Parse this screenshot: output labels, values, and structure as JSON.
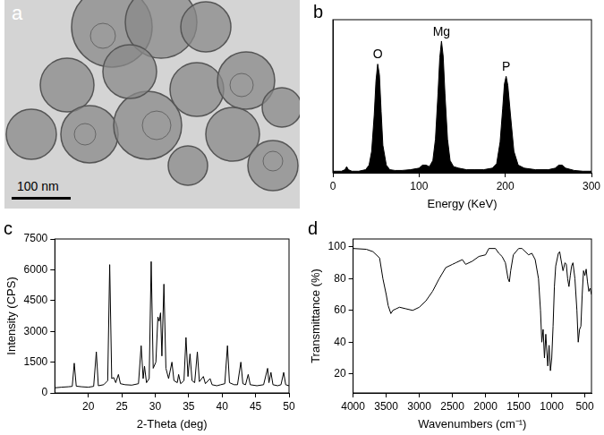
{
  "image_panel": {
    "panel_label": "a",
    "scale_bar": "100 nm"
  },
  "chart_data": [
    {
      "panel_label": "b",
      "type": "area",
      "x_label": "Energy (KeV)",
      "x": [
        0,
        5,
        10,
        14,
        16,
        18,
        22,
        30,
        38,
        42,
        45,
        48,
        50,
        52,
        54,
        56,
        58,
        62,
        66,
        72,
        80,
        90,
        100,
        104,
        108,
        112,
        116,
        119,
        122,
        124,
        126,
        128,
        130,
        133,
        136,
        140,
        146,
        155,
        165,
        175,
        185,
        190,
        194,
        197,
        199,
        201,
        203,
        206,
        210,
        215,
        222,
        235,
        250,
        258,
        262,
        266,
        270,
        280,
        290,
        300
      ],
      "values": [
        1,
        1,
        1,
        2,
        4,
        2,
        1,
        1,
        2,
        5,
        14,
        38,
        60,
        71,
        64,
        40,
        18,
        5,
        2,
        1.5,
        1.5,
        2,
        3,
        5,
        5,
        4,
        8,
        22,
        52,
        75,
        86,
        76,
        52,
        22,
        8,
        4,
        3,
        2,
        2,
        2,
        3,
        6,
        20,
        42,
        58,
        63,
        57,
        38,
        14,
        5,
        3,
        2,
        2,
        3,
        5,
        5,
        3,
        1.5,
        1,
        1
      ],
      "color": "#000000",
      "xlim": [
        0,
        300
      ],
      "xticks": [
        0,
        100,
        200,
        300
      ],
      "ylim": [
        0,
        100
      ],
      "tick_labels": "x",
      "grid": false,
      "annotations": [
        {
          "text": "O",
          "x": 52,
          "y": 71
        },
        {
          "text": "Mg",
          "x": 126,
          "y": 86
        },
        {
          "text": "P",
          "x": 201,
          "y": 63
        }
      ]
    },
    {
      "panel_label": "c",
      "type": "line",
      "x_label": "2-Theta (deg)",
      "y_label": "Intensity (CPS)",
      "x": [
        15,
        16,
        17,
        17.6,
        17.9,
        18.2,
        19,
        20,
        20.8,
        21.2,
        21.5,
        22.3,
        22.9,
        23.2,
        23.5,
        23.8,
        24.1,
        24.5,
        24.8,
        25.5,
        26.5,
        27.5,
        27.9,
        28.2,
        28.4,
        28.7,
        29.1,
        29.4,
        29.7,
        30.1,
        30.4,
        30.6,
        30.8,
        31.0,
        31.3,
        31.6,
        32.0,
        32.5,
        32.8,
        33.3,
        33.5,
        33.8,
        34.3,
        34.6,
        34.9,
        35.2,
        35.5,
        35.9,
        36.3,
        36.6,
        37.2,
        37.5,
        38.2,
        38.5,
        39.2,
        39.8,
        40.4,
        40.8,
        41.1,
        41.8,
        42.3,
        42.8,
        43.1,
        43.5,
        43.9,
        44.2,
        45.2,
        46.2,
        46.8,
        47.0,
        47.3,
        47.6,
        48.3,
        48.8,
        49.2,
        49.5,
        50
      ],
      "values": [
        250,
        280,
        300,
        320,
        1450,
        330,
        300,
        280,
        320,
        2000,
        350,
        400,
        600,
        6250,
        700,
        750,
        500,
        900,
        450,
        400,
        380,
        450,
        2300,
        700,
        1300,
        500,
        700,
        6400,
        1200,
        1500,
        3700,
        3500,
        3900,
        1800,
        5300,
        1200,
        700,
        1500,
        600,
        500,
        900,
        450,
        600,
        2700,
        800,
        1900,
        600,
        500,
        2000,
        550,
        800,
        450,
        700,
        400,
        350,
        400,
        450,
        2300,
        500,
        400,
        400,
        1500,
        450,
        400,
        900,
        400,
        350,
        400,
        1200,
        500,
        1000,
        400,
        350,
        400,
        1000,
        400,
        350
      ],
      "color": "#000000",
      "xlim": [
        15,
        50
      ],
      "xticks": [
        20,
        25,
        30,
        35,
        40,
        45,
        50
      ],
      "ylim": [
        0,
        7500
      ],
      "yticks": [
        0,
        1500,
        3000,
        4500,
        6000,
        7500
      ],
      "grid": false
    },
    {
      "panel_label": "d",
      "type": "line",
      "x_label": "Wavenumbers (cm⁻¹)",
      "y_label": "Transmittance (%)",
      "x": [
        4000,
        3800,
        3700,
        3600,
        3550,
        3500,
        3470,
        3430,
        3400,
        3350,
        3300,
        3200,
        3100,
        3000,
        2900,
        2800,
        2700,
        2600,
        2500,
        2450,
        2350,
        2300,
        2200,
        2100,
        2000,
        1950,
        1850,
        1800,
        1750,
        1700,
        1660,
        1640,
        1620,
        1580,
        1500,
        1450,
        1400,
        1350,
        1300,
        1250,
        1200,
        1170,
        1150,
        1130,
        1110,
        1090,
        1060,
        1040,
        1020,
        1000,
        980,
        960,
        940,
        900,
        880,
        860,
        830,
        800,
        780,
        760,
        740,
        720,
        700,
        680,
        650,
        620,
        600,
        580,
        560,
        540,
        520,
        500,
        480,
        460,
        440,
        420,
        400
      ],
      "values": [
        99,
        98.5,
        97,
        93,
        80,
        70,
        63,
        58,
        60,
        61,
        62,
        61,
        60,
        62,
        66,
        72,
        80,
        87,
        89,
        90,
        92,
        89,
        91,
        94,
        95,
        99,
        99,
        96,
        94,
        90,
        80,
        78,
        85,
        95,
        99,
        99,
        97,
        95,
        96,
        92,
        80,
        60,
        40,
        48,
        30,
        45,
        25,
        38,
        22,
        30,
        50,
        75,
        88,
        96,
        97,
        92,
        85,
        90,
        89,
        80,
        75,
        82,
        88,
        90,
        80,
        60,
        40,
        48,
        50,
        70,
        85,
        82,
        86,
        78,
        72,
        74,
        70
      ],
      "color": "#000000",
      "xlim": [
        4000,
        400
      ],
      "xticks": [
        4000,
        3500,
        3000,
        2500,
        2000,
        1500,
        1000,
        500
      ],
      "ylim": [
        8,
        105
      ],
      "yticks": [
        20,
        40,
        60,
        80,
        100
      ],
      "grid": false
    }
  ]
}
